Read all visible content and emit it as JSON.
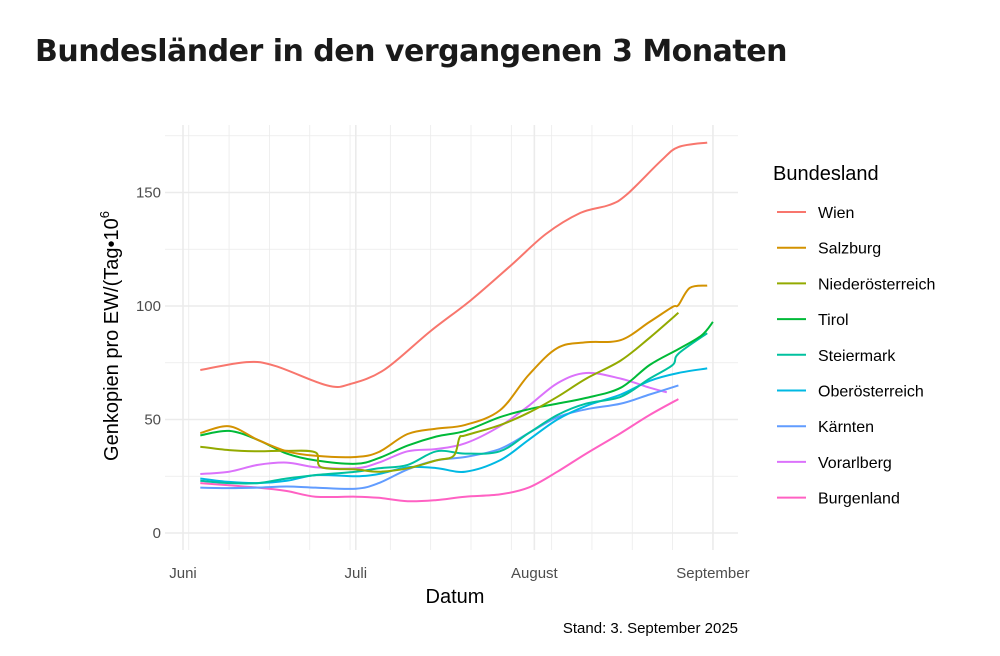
{
  "title": "Bundesländer in den vergangenen 3 Monaten",
  "chart_data": {
    "type": "line",
    "title": "Bundesländer in den vergangenen 3 Monaten",
    "xlabel": "Datum",
    "ylabel": "Genkopien pro EW/(Tag•10",
    "ylabel_superscript": "6",
    "caption": "Stand: 3. September 2025",
    "xlim": [
      "2025-05-31",
      "2025-09-05"
    ],
    "ylim": [
      -7,
      180
    ],
    "x_ticks": [
      {
        "date": "2025-06-01",
        "label": "Juni"
      },
      {
        "date": "2025-07-01",
        "label": "Juli"
      },
      {
        "date": "2025-08-01",
        "label": "August"
      },
      {
        "date": "2025-09-01",
        "label": "September"
      }
    ],
    "y_ticks": [
      0,
      50,
      100,
      150
    ],
    "grid": true,
    "legend": {
      "title": "Bundesland",
      "position": "right"
    },
    "series": [
      {
        "name": "Wien",
        "color": "#F8766D",
        "points": [
          [
            "2025-06-04",
            71.8
          ],
          [
            "2025-06-12",
            75.3
          ],
          [
            "2025-06-17",
            73.6
          ],
          [
            "2025-06-26",
            65
          ],
          [
            "2025-06-30",
            65.6
          ],
          [
            "2025-07-06",
            72
          ],
          [
            "2025-07-14",
            89
          ],
          [
            "2025-07-21",
            102.6
          ],
          [
            "2025-07-28",
            118
          ],
          [
            "2025-08-03",
            131.7
          ],
          [
            "2025-08-09",
            141
          ],
          [
            "2025-08-14",
            144.5
          ],
          [
            "2025-08-17",
            149
          ],
          [
            "2025-08-23",
            164
          ],
          [
            "2025-08-26",
            170
          ],
          [
            "2025-08-31",
            172
          ]
        ]
      },
      {
        "name": "Salzburg",
        "color": "#D39200",
        "points": [
          [
            "2025-06-04",
            44
          ],
          [
            "2025-06-09",
            47
          ],
          [
            "2025-06-14",
            41
          ],
          [
            "2025-06-19",
            36
          ],
          [
            "2025-06-24",
            34
          ],
          [
            "2025-07-01",
            33.5
          ],
          [
            "2025-07-05",
            35.7
          ],
          [
            "2025-07-10",
            43.6
          ],
          [
            "2025-07-15",
            46
          ],
          [
            "2025-07-20",
            47.6
          ],
          [
            "2025-07-26",
            54
          ],
          [
            "2025-07-31",
            69.6
          ],
          [
            "2025-08-05",
            81.5
          ],
          [
            "2025-08-10",
            84
          ],
          [
            "2025-08-16",
            85
          ],
          [
            "2025-08-21",
            93
          ],
          [
            "2025-08-25",
            99.6
          ],
          [
            "2025-08-26",
            100.4
          ],
          [
            "2025-08-28",
            108
          ],
          [
            "2025-08-31",
            109
          ]
        ]
      },
      {
        "name": "Niederösterreich",
        "color": "#93AA00",
        "points": [
          [
            "2025-06-04",
            38
          ],
          [
            "2025-06-09",
            36.5
          ],
          [
            "2025-06-14",
            36
          ],
          [
            "2025-06-19",
            36.2
          ],
          [
            "2025-06-24",
            35.5
          ],
          [
            "2025-06-25",
            29
          ],
          [
            "2025-07-01",
            28
          ],
          [
            "2025-07-05",
            27
          ],
          [
            "2025-07-10",
            28.5
          ],
          [
            "2025-07-15",
            32
          ],
          [
            "2025-07-18",
            34
          ],
          [
            "2025-07-19",
            42
          ],
          [
            "2025-07-20",
            43
          ],
          [
            "2025-07-26",
            47.5
          ],
          [
            "2025-07-31",
            53
          ],
          [
            "2025-08-05",
            60
          ],
          [
            "2025-08-10",
            68
          ],
          [
            "2025-08-16",
            76
          ],
          [
            "2025-08-21",
            86
          ],
          [
            "2025-08-26",
            97
          ]
        ]
      },
      {
        "name": "Tirol",
        "color": "#00BA38",
        "points": [
          [
            "2025-06-04",
            43
          ],
          [
            "2025-06-09",
            45
          ],
          [
            "2025-06-14",
            41
          ],
          [
            "2025-06-19",
            35
          ],
          [
            "2025-06-24",
            32
          ],
          [
            "2025-07-01",
            30.5
          ],
          [
            "2025-07-05",
            33
          ],
          [
            "2025-07-10",
            38.5
          ],
          [
            "2025-07-15",
            42.5
          ],
          [
            "2025-07-20",
            45
          ],
          [
            "2025-07-26",
            51
          ],
          [
            "2025-07-31",
            54.5
          ],
          [
            "2025-08-05",
            57
          ],
          [
            "2025-08-10",
            59.5
          ],
          [
            "2025-08-16",
            64
          ],
          [
            "2025-08-21",
            74
          ],
          [
            "2025-08-26",
            81
          ],
          [
            "2025-08-30",
            87
          ],
          [
            "2025-09-01",
            93
          ]
        ]
      },
      {
        "name": "Steiermark",
        "color": "#00C19F",
        "points": [
          [
            "2025-06-04",
            23
          ],
          [
            "2025-06-09",
            22
          ],
          [
            "2025-06-14",
            22
          ],
          [
            "2025-06-19",
            24
          ],
          [
            "2025-06-24",
            25.5
          ],
          [
            "2025-07-01",
            27
          ],
          [
            "2025-07-05",
            28.5
          ],
          [
            "2025-07-10",
            30
          ],
          [
            "2025-07-15",
            36
          ],
          [
            "2025-07-20",
            35
          ],
          [
            "2025-07-26",
            36
          ],
          [
            "2025-07-31",
            44
          ],
          [
            "2025-08-05",
            52
          ],
          [
            "2025-08-10",
            57
          ],
          [
            "2025-08-16",
            60
          ],
          [
            "2025-08-21",
            68
          ],
          [
            "2025-08-25",
            74
          ],
          [
            "2025-08-26",
            79
          ],
          [
            "2025-08-31",
            88
          ]
        ]
      },
      {
        "name": "Oberösterreich",
        "color": "#00B9E3",
        "points": [
          [
            "2025-06-04",
            24
          ],
          [
            "2025-06-09",
            22.5
          ],
          [
            "2025-06-14",
            22
          ],
          [
            "2025-06-19",
            23
          ],
          [
            "2025-06-24",
            25.5
          ],
          [
            "2025-07-01",
            25
          ],
          [
            "2025-07-05",
            26
          ],
          [
            "2025-07-10",
            29
          ],
          [
            "2025-07-15",
            28.6
          ],
          [
            "2025-07-20",
            27
          ],
          [
            "2025-07-26",
            32
          ],
          [
            "2025-07-31",
            41
          ],
          [
            "2025-08-05",
            50
          ],
          [
            "2025-08-10",
            56
          ],
          [
            "2025-08-16",
            61
          ],
          [
            "2025-08-21",
            67
          ],
          [
            "2025-08-26",
            70.5
          ],
          [
            "2025-08-31",
            72.5
          ]
        ]
      },
      {
        "name": "Kärnten",
        "color": "#619CFF",
        "points": [
          [
            "2025-06-04",
            20
          ],
          [
            "2025-06-09",
            19.8
          ],
          [
            "2025-06-14",
            20
          ],
          [
            "2025-06-19",
            20.5
          ],
          [
            "2025-06-24",
            20
          ],
          [
            "2025-07-01",
            19.5
          ],
          [
            "2025-07-05",
            22
          ],
          [
            "2025-07-10",
            28
          ],
          [
            "2025-07-15",
            32
          ],
          [
            "2025-07-20",
            33.5
          ],
          [
            "2025-07-26",
            37
          ],
          [
            "2025-07-31",
            44
          ],
          [
            "2025-08-05",
            51
          ],
          [
            "2025-08-10",
            54.5
          ],
          [
            "2025-08-16",
            57
          ],
          [
            "2025-08-21",
            61
          ],
          [
            "2025-08-26",
            65
          ]
        ]
      },
      {
        "name": "Vorarlberg",
        "color": "#DB72FB",
        "points": [
          [
            "2025-06-04",
            26
          ],
          [
            "2025-06-09",
            27
          ],
          [
            "2025-06-14",
            30
          ],
          [
            "2025-06-19",
            31
          ],
          [
            "2025-06-24",
            29
          ],
          [
            "2025-07-01",
            28.5
          ],
          [
            "2025-07-05",
            31
          ],
          [
            "2025-07-10",
            36
          ],
          [
            "2025-07-15",
            37
          ],
          [
            "2025-07-20",
            39.5
          ],
          [
            "2025-07-26",
            47
          ],
          [
            "2025-07-31",
            56
          ],
          [
            "2025-08-05",
            66
          ],
          [
            "2025-08-10",
            70.5
          ],
          [
            "2025-08-16",
            68
          ],
          [
            "2025-08-21",
            64
          ],
          [
            "2025-08-24",
            62
          ]
        ]
      },
      {
        "name": "Burgenland",
        "color": "#FF61C3",
        "points": [
          [
            "2025-06-04",
            22
          ],
          [
            "2025-06-09",
            21
          ],
          [
            "2025-06-14",
            20
          ],
          [
            "2025-06-19",
            18.5
          ],
          [
            "2025-06-24",
            16
          ],
          [
            "2025-07-01",
            16
          ],
          [
            "2025-07-05",
            15.5
          ],
          [
            "2025-07-10",
            14
          ],
          [
            "2025-07-15",
            14.5
          ],
          [
            "2025-07-20",
            16
          ],
          [
            "2025-07-26",
            17
          ],
          [
            "2025-07-31",
            20
          ],
          [
            "2025-08-05",
            27
          ],
          [
            "2025-08-10",
            35
          ],
          [
            "2025-08-16",
            44
          ],
          [
            "2025-08-21",
            52
          ],
          [
            "2025-08-26",
            59
          ]
        ]
      }
    ]
  }
}
